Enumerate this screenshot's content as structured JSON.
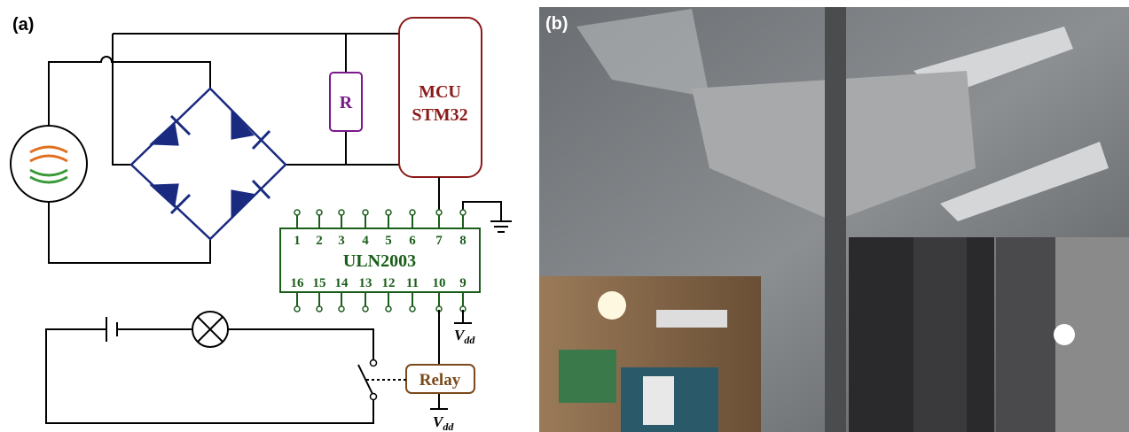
{
  "panels": {
    "a": "(a)",
    "b": "(b)"
  },
  "resistor": "R",
  "mcu": {
    "line1": "MCU",
    "line2": "STM32"
  },
  "chip": {
    "name": "ULN2003",
    "pins_top": [
      "1",
      "2",
      "3",
      "4",
      "5",
      "6",
      "7",
      "8"
    ],
    "pins_bottom": [
      "16",
      "15",
      "14",
      "13",
      "12",
      "11",
      "10",
      "9"
    ]
  },
  "relay": "Relay",
  "vdd": [
    {
      "main": "V",
      "sub": "dd"
    },
    {
      "main": "V",
      "sub": "dd"
    }
  ]
}
